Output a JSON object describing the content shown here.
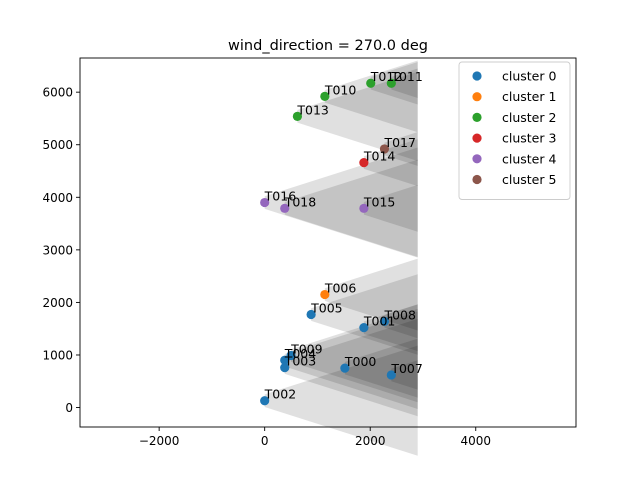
{
  "chart_data": {
    "type": "scatter",
    "title": "wind_direction = 270.0 deg",
    "xlim": [
      -3500,
      5900
    ],
    "ylim": [
      -370,
      6650
    ],
    "xticks": [
      -2000,
      0,
      2000,
      4000
    ],
    "yticks": [
      0,
      1000,
      2000,
      3000,
      4000,
      5000,
      6000
    ],
    "xtick_labels": [
      "−2000",
      "0",
      "2000",
      "4000"
    ],
    "ytick_labels": [
      "0",
      "1000",
      "2000",
      "3000",
      "4000",
      "5000",
      "6000"
    ],
    "grid": false,
    "legend_position": "top-right",
    "wake_x_end": 2900,
    "series": [
      {
        "name": "cluster 0",
        "color": "#1f77b4",
        "points": [
          {
            "label": "T000",
            "x": 1520,
            "y": 750
          },
          {
            "label": "T001",
            "x": 1880,
            "y": 1520
          },
          {
            "label": "T002",
            "x": 0,
            "y": 130
          },
          {
            "label": "T003",
            "x": 380,
            "y": 760
          },
          {
            "label": "T004",
            "x": 380,
            "y": 900
          },
          {
            "label": "T005",
            "x": 880,
            "y": 1770
          },
          {
            "label": "T007",
            "x": 2400,
            "y": 620
          },
          {
            "label": "T008",
            "x": 2270,
            "y": 1640
          },
          {
            "label": "T009",
            "x": 500,
            "y": 990
          }
        ]
      },
      {
        "name": "cluster 1",
        "color": "#ff7f0e",
        "points": [
          {
            "label": "T006",
            "x": 1140,
            "y": 2150
          }
        ]
      },
      {
        "name": "cluster 2",
        "color": "#2ca02c",
        "points": [
          {
            "label": "T010",
            "x": 1140,
            "y": 5920
          },
          {
            "label": "T011",
            "x": 2400,
            "y": 6170
          },
          {
            "label": "T012",
            "x": 2010,
            "y": 6170
          },
          {
            "label": "T013",
            "x": 620,
            "y": 5540
          }
        ]
      },
      {
        "name": "cluster 3",
        "color": "#d62728",
        "points": [
          {
            "label": "T014",
            "x": 1880,
            "y": 4660
          }
        ]
      },
      {
        "name": "cluster 4",
        "color": "#9467bd",
        "points": [
          {
            "label": "T015",
            "x": 1880,
            "y": 3790
          },
          {
            "label": "T016",
            "x": 0,
            "y": 3900
          },
          {
            "label": "T018",
            "x": 380,
            "y": 3790
          }
        ]
      },
      {
        "name": "cluster 5",
        "color": "#8c564b",
        "points": [
          {
            "label": "T017",
            "x": 2270,
            "y": 4920
          }
        ]
      }
    ]
  }
}
